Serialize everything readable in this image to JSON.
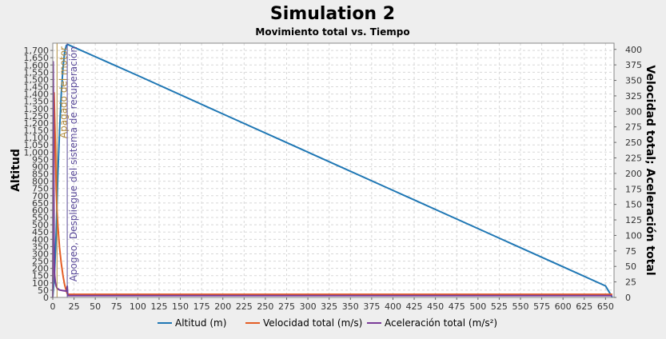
{
  "chart_data": {
    "type": "line",
    "title": "Simulation 2",
    "subtitle": "Movimiento total vs. Tiempo",
    "xlabel": "",
    "ylabel_left": "Altitud",
    "ylabel_right": "Velocidad total; Aceleración total",
    "xlim": [
      0,
      660
    ],
    "ylim_left": [
      0,
      1750
    ],
    "ylim_right": [
      0,
      410
    ],
    "x_ticks": [
      0,
      25,
      50,
      75,
      100,
      125,
      150,
      175,
      200,
      225,
      250,
      275,
      300,
      325,
      350,
      375,
      400,
      425,
      450,
      475,
      500,
      525,
      550,
      575,
      600,
      625,
      650
    ],
    "x_tick_labels": [
      "0",
      "25",
      "50",
      "75",
      "100",
      "125",
      "150",
      "175",
      "200",
      "225",
      "250",
      "275",
      "300",
      "325",
      "350",
      "375",
      "400",
      "425",
      "450",
      "475",
      "500",
      "525",
      "550",
      "575",
      "600",
      "625",
      "650"
    ],
    "y_left_ticks": [
      0,
      50,
      100,
      150,
      200,
      250,
      300,
      350,
      400,
      450,
      500,
      550,
      600,
      650,
      700,
      750,
      800,
      850,
      900,
      950,
      1000,
      1050,
      1100,
      1150,
      1200,
      1250,
      1300,
      1350,
      1400,
      1450,
      1500,
      1550,
      1600,
      1650,
      1700
    ],
    "y_left_tick_labels": [
      "0",
      "50",
      "100",
      "150",
      "200",
      "250",
      "300",
      "350",
      "400",
      "450",
      "500",
      "550",
      "600",
      "650",
      "700",
      "750",
      "800",
      "850",
      "900",
      "950",
      "1,000",
      "1,050",
      "1,100",
      "1,150",
      "1,200",
      "1,250",
      "1,300",
      "1,350",
      "1,400",
      "1,450",
      "1,500",
      "1,550",
      "1,600",
      "1,650",
      "1,700"
    ],
    "y_right_ticks": [
      0,
      25,
      50,
      75,
      100,
      125,
      150,
      175,
      200,
      225,
      250,
      275,
      300,
      325,
      350,
      375,
      400
    ],
    "y_right_tick_labels": [
      "0",
      "25",
      "50",
      "75",
      "100",
      "125",
      "150",
      "175",
      "200",
      "225",
      "250",
      "275",
      "300",
      "325",
      "350",
      "375",
      "400"
    ],
    "grid": true,
    "legend_position": "bottom",
    "series": [
      {
        "name": "Altitud (m)",
        "axis": "left",
        "color": "#1f77b4",
        "x": [
          0,
          2,
          4,
          6,
          8,
          10,
          12,
          14,
          16,
          18,
          100,
          200,
          300,
          400,
          500,
          600,
          650,
          658
        ],
        "y": [
          0,
          150,
          450,
          850,
          1150,
          1400,
          1580,
          1690,
          1735,
          1740,
          1527,
          1263,
          1000,
          737,
          474,
          211,
          79,
          0
        ]
      },
      {
        "name": "Velocidad total (m/s)",
        "axis": "right",
        "color": "#e45d25",
        "x": [
          0,
          1,
          1.5,
          2,
          3,
          4,
          5,
          6,
          8,
          10,
          12,
          14,
          16,
          17,
          18,
          50,
          100,
          200,
          300,
          400,
          500,
          600,
          658
        ],
        "y": [
          0,
          180,
          330,
          305,
          250,
          175,
          140,
          115,
          80,
          55,
          35,
          20,
          10,
          6,
          5,
          5,
          5,
          5,
          5,
          5,
          5,
          5,
          5
        ]
      },
      {
        "name": "Aceleración total (m/s²)",
        "axis": "right",
        "color": "#7a3b98",
        "x": [
          0,
          0.5,
          1,
          1.5,
          2,
          3,
          4,
          5,
          8,
          12,
          16,
          17,
          17.5,
          18,
          50,
          100,
          300,
          500,
          658
        ],
        "y": [
          0,
          380,
          280,
          80,
          40,
          25,
          18,
          15,
          12,
          11,
          10,
          18,
          6,
          3,
          3,
          3,
          3,
          3,
          3
        ]
      }
    ],
    "annotations": [
      {
        "text": "Apagado del motor",
        "x": 5
      },
      {
        "text": "Apogeo, Despliegue del sistema de recuperación",
        "x": 17
      }
    ]
  }
}
